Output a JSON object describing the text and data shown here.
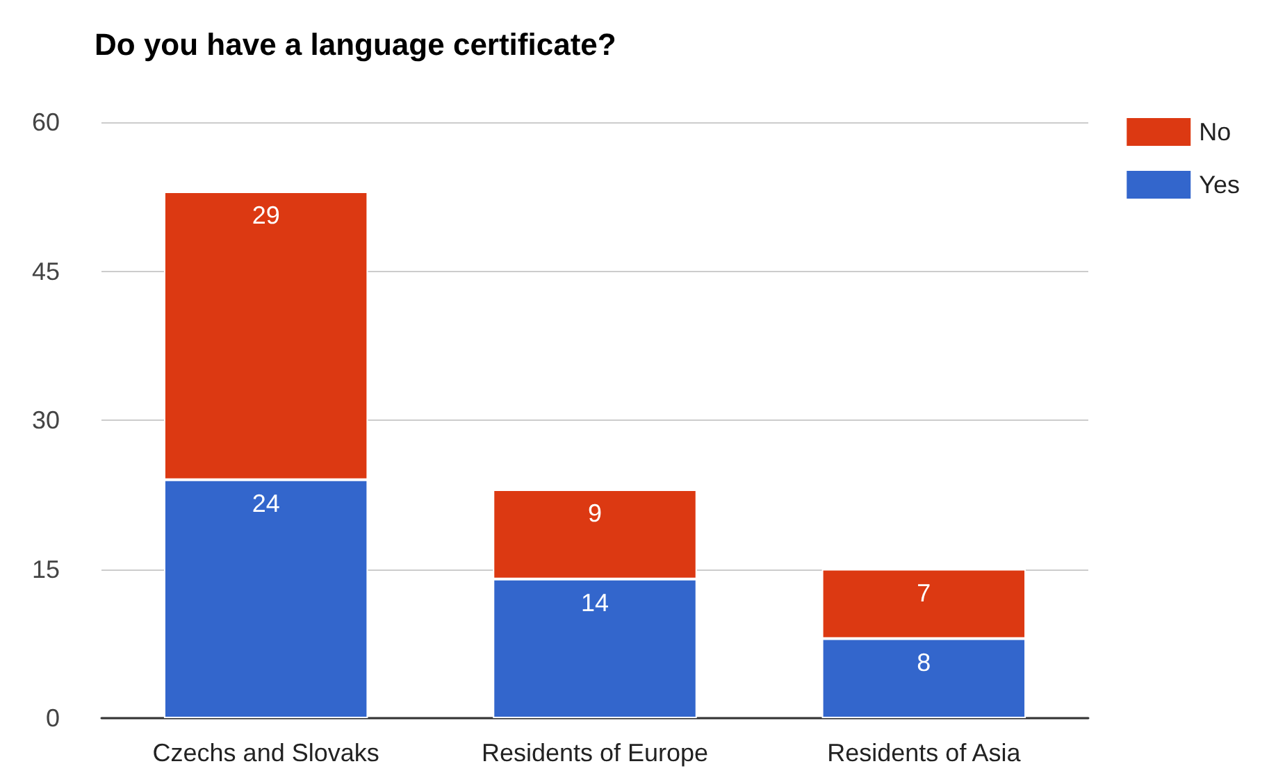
{
  "chart_data": {
    "type": "bar",
    "title": "Do you have a language certificate?",
    "categories": [
      "Czechs and Slovaks",
      "Residents of Europe",
      "Residents of Asia"
    ],
    "series": [
      {
        "name": "Yes",
        "color": "#3366cc",
        "values": [
          24,
          14,
          8
        ]
      },
      {
        "name": "No",
        "color": "#dc3912",
        "values": [
          29,
          9,
          7
        ]
      }
    ],
    "stacked": true,
    "data_labels": true,
    "ylim": [
      0,
      60
    ],
    "yticks": [
      0,
      15,
      30,
      45,
      60
    ],
    "grid": "y",
    "legend": "top right"
  }
}
